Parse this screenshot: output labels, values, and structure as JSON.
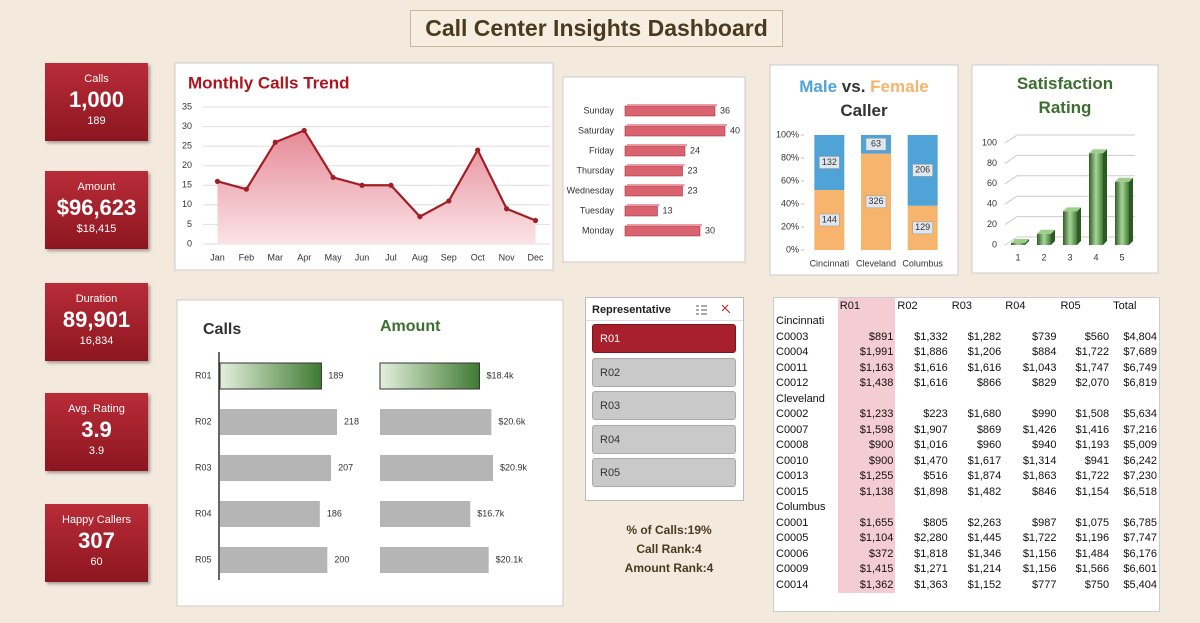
{
  "title": "Call Center Insights Dashboard",
  "kpis": [
    {
      "label": "Calls",
      "value": "1,000",
      "sub": "189"
    },
    {
      "label": "Amount",
      "value": "$96,623",
      "sub": "$18,415"
    },
    {
      "label": "Duration",
      "value": "89,901",
      "sub": "16,834"
    },
    {
      "label": "Avg. Rating",
      "value": "3.9",
      "sub": "3.9"
    },
    {
      "label": "Happy Callers",
      "value": "307",
      "sub": "60"
    }
  ],
  "chart_data": [
    {
      "type": "line",
      "title": "Monthly Calls Trend",
      "categories": [
        "Jan",
        "Feb",
        "Mar",
        "Apr",
        "May",
        "Jun",
        "Jul",
        "Aug",
        "Sep",
        "Oct",
        "Nov",
        "Dec"
      ],
      "values": [
        16,
        14,
        26,
        29,
        17,
        15,
        15,
        7,
        11,
        24,
        9,
        6
      ],
      "color": "#a31d25",
      "ylim": [
        0,
        35
      ],
      "yticks": [
        0,
        5,
        10,
        15,
        20,
        25,
        30,
        35
      ],
      "grid": true
    },
    {
      "type": "hbar",
      "categories": [
        "Sunday",
        "Saturday",
        "Friday",
        "Thursday",
        "Wednesday",
        "Tuesday",
        "Monday"
      ],
      "values": [
        36,
        40,
        24,
        23,
        23,
        13,
        30
      ],
      "color": "#d9636f"
    },
    {
      "type": "stacked_percent",
      "title_parts": [
        "vs.",
        "Caller"
      ],
      "categories": [
        "Cincinnati",
        "Cleveland",
        "Columbus"
      ],
      "series": [
        {
          "name": "Male",
          "color": "#4fa3d6",
          "values": [
            132,
            63,
            206
          ]
        },
        {
          "name": "Female",
          "color": "#f6b46c",
          "values": [
            144,
            326,
            129
          ]
        }
      ],
      "ylim": [
        0,
        100
      ],
      "yticks": [
        {
          "value": 0,
          "label": "0%"
        },
        {
          "value": 20,
          "label": "20%"
        },
        {
          "value": 40,
          "label": "40%"
        },
        {
          "value": 60,
          "label": "60%"
        },
        {
          "value": 80,
          "label": "80%"
        },
        {
          "value": 100,
          "label": "100%"
        }
      ],
      "grid": false
    },
    {
      "type": "bar3d",
      "title": "Satisfaction Rating",
      "categories": [
        "1",
        "2",
        "3",
        "4",
        "5"
      ],
      "values": [
        2,
        11,
        33,
        90,
        62
      ],
      "color": "#4e8a3e",
      "ylim": [
        0,
        100
      ],
      "yticks": [
        0,
        20,
        40,
        60,
        80,
        100
      ],
      "grid": true
    },
    {
      "type": "rep_bar",
      "title": "Calls",
      "categories": [
        "R01",
        "R02",
        "R03",
        "R04",
        "R05"
      ],
      "values": [
        189,
        218,
        207,
        186,
        200
      ],
      "color": "#b5b5b5"
    },
    {
      "type": "rep_bar",
      "title": "Amount",
      "categories": [
        "R01",
        "R02",
        "R03",
        "R04",
        "R05"
      ],
      "values": [
        18400,
        20600,
        20900,
        16700,
        20100
      ],
      "value_labels": [
        "$18.4k",
        "$20.6k",
        "$20.9k",
        "$16.7k",
        "$20.1k"
      ],
      "color": "#b5b5b5"
    }
  ],
  "slicer": {
    "title": "Representative",
    "items": [
      "R01",
      "R02",
      "R03",
      "R04",
      "R05"
    ],
    "selected": "R01"
  },
  "stats": [
    "% of Calls:19%",
    "Call Rank:4",
    "Amount Rank:4"
  ],
  "table": {
    "header": [
      "R01",
      "R02",
      "R03",
      "R04",
      "R05",
      "Total"
    ],
    "groups": [
      {
        "name": "Cincinnati",
        "rows": [
          [
            "C0003",
            "$891",
            "$1,332",
            "$1,282",
            "$739",
            "$560",
            "$4,804"
          ],
          [
            "C0004",
            "$1,991",
            "$1,886",
            "$1,206",
            "$884",
            "$1,722",
            "$7,689"
          ],
          [
            "C0011",
            "$1,163",
            "$1,616",
            "$1,616",
            "$1,043",
            "$1,747",
            "$6,749"
          ],
          [
            "C0012",
            "$1,438",
            "$1,616",
            "$866",
            "$829",
            "$2,070",
            "$6,819"
          ]
        ]
      },
      {
        "name": "Cleveland",
        "rows": [
          [
            "C0002",
            "$1,233",
            "$223",
            "$1,680",
            "$990",
            "$1,508",
            "$5,634"
          ],
          [
            "C0007",
            "$1,598",
            "$1,907",
            "$869",
            "$1,426",
            "$1,416",
            "$7,216"
          ],
          [
            "C0008",
            "$900",
            "$1,016",
            "$960",
            "$940",
            "$1,193",
            "$5,009"
          ],
          [
            "C0010",
            "$900",
            "$1,470",
            "$1,617",
            "$1,314",
            "$941",
            "$6,242"
          ],
          [
            "C0013",
            "$1,255",
            "$516",
            "$1,874",
            "$1,863",
            "$1,722",
            "$7,230"
          ],
          [
            "C0015",
            "$1,138",
            "$1,898",
            "$1,482",
            "$846",
            "$1,154",
            "$6,518"
          ]
        ]
      },
      {
        "name": "Columbus",
        "rows": [
          [
            "C0001",
            "$1,655",
            "$805",
            "$2,263",
            "$987",
            "$1,075",
            "$6,785"
          ],
          [
            "C0005",
            "$1,104",
            "$2,280",
            "$1,445",
            "$1,722",
            "$1,196",
            "$7,747"
          ],
          [
            "C0006",
            "$372",
            "$1,818",
            "$1,346",
            "$1,156",
            "$1,484",
            "$6,176"
          ],
          [
            "C0009",
            "$1,415",
            "$1,271",
            "$1,214",
            "$1,156",
            "$1,566",
            "$6,601"
          ],
          [
            "C0014",
            "$1,362",
            "$1,363",
            "$1,152",
            "$777",
            "$750",
            "$5,404"
          ]
        ]
      }
    ]
  }
}
